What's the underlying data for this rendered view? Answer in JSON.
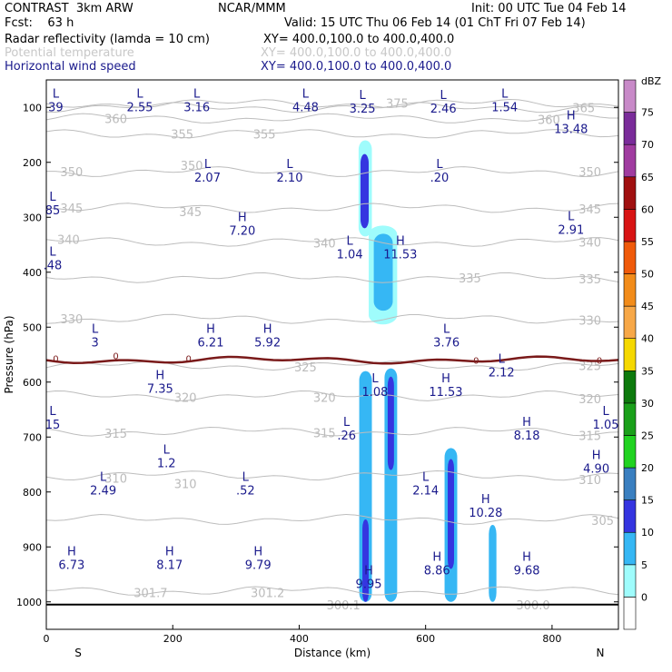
{
  "header": {
    "line1_left": "CONTRAST  3km ARW",
    "line1_center": "NCAR/MMM",
    "line1_right": "Init: 00 UTC Tue 04 Feb 14",
    "line2_left": "Fcst:    63 h",
    "line2_right": "Valid: 15 UTC Thu 06 Feb 14 (01 ChT Fri 07 Feb 14)",
    "fields": [
      {
        "name": "Radar reflectivity (lamda = 10 cm)",
        "xy": "XY= 400.0,100.0 to 400.0,400.0",
        "color": "#000000"
      },
      {
        "name": "Potential temperature",
        "xy": "XY= 400.0,100.0 to 400.0,400.0",
        "color": "#c8c8c8"
      },
      {
        "name": "Horizontal wind speed",
        "xy": "XY= 400.0,100.0 to 400.0,400.0",
        "color": "#1a1a8c"
      }
    ]
  },
  "chart_data": {
    "type": "heatmap",
    "xlabel": "Distance (km)",
    "ylabel": "Pressure (hPa)",
    "x_ticks": [
      "0",
      "200",
      "400",
      "600",
      "800"
    ],
    "y_ticks": [
      "100",
      "200",
      "300",
      "400",
      "500",
      "600",
      "700",
      "800",
      "900",
      "1000"
    ],
    "xlim": [
      0,
      905
    ],
    "ylim": [
      1050,
      50
    ],
    "left_end_label": "S",
    "right_end_label": "N",
    "colorbar": {
      "unit": "dBZ",
      "levels": [
        "0",
        "5",
        "10",
        "15",
        "20",
        "25",
        "30",
        "35",
        "40",
        "45",
        "50",
        "55",
        "60",
        "65",
        "70",
        "75"
      ],
      "colors": [
        "#ffffff",
        "#9ffcfc",
        "#36b7f4",
        "#3535e0",
        "#3a7fc0",
        "#21d321",
        "#1aa01a",
        "#0d7a0d",
        "#f5d800",
        "#f7a848",
        "#f28c1a",
        "#f05a0a",
        "#d81414",
        "#a01010",
        "#a03ca0",
        "#7a2c9a",
        "#c88ac8"
      ]
    },
    "theta_contours": [
      {
        "label": "375",
        "p": 93
      },
      {
        "label": "365",
        "p": 100
      },
      {
        "label": "360",
        "p": 120
      },
      {
        "label": "355",
        "p": 148
      },
      {
        "label": "350",
        "p": 217
      },
      {
        "label": "345",
        "p": 283
      },
      {
        "label": "340",
        "p": 345
      },
      {
        "label": "335",
        "p": 410
      },
      {
        "label": "330",
        "p": 485
      },
      {
        "label": "325",
        "p": 570
      },
      {
        "label": "320",
        "p": 625
      },
      {
        "label": "315",
        "p": 690
      },
      {
        "label": "310",
        "p": 770
      },
      {
        "label": "305",
        "p": 850
      },
      {
        "label": "301.7",
        "p": 980
      }
    ],
    "isolines_labels": [
      {
        "text": "360",
        "x": 110,
        "p": 120
      },
      {
        "text": "355",
        "x": 215,
        "p": 148
      },
      {
        "text": "355",
        "x": 345,
        "p": 148
      },
      {
        "text": "350",
        "x": 40,
        "p": 217
      },
      {
        "text": "350",
        "x": 230,
        "p": 205
      },
      {
        "text": "345",
        "x": 40,
        "p": 283
      },
      {
        "text": "345",
        "x": 228,
        "p": 290
      },
      {
        "text": "340",
        "x": 35,
        "p": 340
      },
      {
        "text": "340",
        "x": 440,
        "p": 347
      },
      {
        "text": "335",
        "x": 670,
        "p": 410
      },
      {
        "text": "330",
        "x": 40,
        "p": 485
      },
      {
        "text": "325",
        "x": 410,
        "p": 572
      },
      {
        "text": "320",
        "x": 220,
        "p": 628
      },
      {
        "text": "320",
        "x": 440,
        "p": 628
      },
      {
        "text": "315",
        "x": 110,
        "p": 693
      },
      {
        "text": "315",
        "x": 440,
        "p": 692
      },
      {
        "text": "310",
        "x": 110,
        "p": 775
      },
      {
        "text": "310",
        "x": 220,
        "p": 785
      },
      {
        "text": "305",
        "x": 880,
        "p": 852
      },
      {
        "text": "301.7",
        "x": 165,
        "p": 983
      },
      {
        "text": "301.2",
        "x": 350,
        "p": 983
      },
      {
        "text": "300.1",
        "x": 470,
        "p": 1005
      },
      {
        "text": "300.0",
        "x": 770,
        "p": 1005
      },
      {
        "text": "365",
        "x": 850,
        "p": 100
      },
      {
        "text": "360",
        "x": 795,
        "p": 122
      },
      {
        "text": "350",
        "x": 860,
        "p": 217
      },
      {
        "text": "345",
        "x": 860,
        "p": 285
      },
      {
        "text": "340",
        "x": 860,
        "p": 345
      },
      {
        "text": "335",
        "x": 860,
        "p": 412
      },
      {
        "text": "330",
        "x": 860,
        "p": 487
      },
      {
        "text": "325",
        "x": 860,
        "p": 570
      },
      {
        "text": "320",
        "x": 860,
        "p": 630
      },
      {
        "text": "315",
        "x": 860,
        "p": 697
      },
      {
        "text": "310",
        "x": 860,
        "p": 777
      },
      {
        "text": "375",
        "x": 555,
        "p": 92
      }
    ],
    "freezing_level_p": 560,
    "zero_labels": [
      {
        "text": "0",
        "x": 15,
        "p": 557
      },
      {
        "text": "0",
        "x": 110,
        "p": 552
      },
      {
        "text": "0",
        "x": 225,
        "p": 557
      },
      {
        "text": "0",
        "x": 680,
        "p": 560
      },
      {
        "text": "0",
        "x": 875,
        "p": 560
      }
    ],
    "wind_highs_lows": [
      {
        "type": "L",
        "value": "39",
        "x": 15,
        "p": 82
      },
      {
        "type": "L",
        "value": "2.55",
        "x": 148,
        "p": 82
      },
      {
        "type": "L",
        "value": "3.16",
        "x": 238,
        "p": 82
      },
      {
        "type": "L",
        "value": "4.48",
        "x": 410,
        "p": 82
      },
      {
        "type": "L",
        "value": "3.25",
        "x": 500,
        "p": 85
      },
      {
        "type": "L",
        "value": "2.46",
        "x": 628,
        "p": 85
      },
      {
        "type": "L",
        "value": "1.54",
        "x": 725,
        "p": 82
      },
      {
        "type": "H",
        "value": "13.48",
        "x": 830,
        "p": 122
      },
      {
        "type": "L",
        "value": "2.07",
        "x": 255,
        "p": 210
      },
      {
        "type": "L",
        "value": "2.10",
        "x": 385,
        "p": 210
      },
      {
        "type": "L",
        "value": ".20",
        "x": 622,
        "p": 210
      },
      {
        "type": "L",
        "value": "85",
        "x": 10,
        "p": 270
      },
      {
        "type": "H",
        "value": "7.20",
        "x": 310,
        "p": 307
      },
      {
        "type": "L",
        "value": "1.04",
        "x": 480,
        "p": 350
      },
      {
        "type": "H",
        "value": "11.53",
        "x": 560,
        "p": 350
      },
      {
        "type": "L",
        "value": "2.91",
        "x": 830,
        "p": 305
      },
      {
        "type": "L",
        "value": ".48",
        "x": 10,
        "p": 370
      },
      {
        "type": "L",
        "value": "3",
        "x": 77,
        "p": 510
      },
      {
        "type": "H",
        "value": "6.21",
        "x": 260,
        "p": 510
      },
      {
        "type": "H",
        "value": "5.92",
        "x": 350,
        "p": 510
      },
      {
        "type": "L",
        "value": "3.76",
        "x": 633,
        "p": 510
      },
      {
        "type": "L",
        "value": "2.12",
        "x": 720,
        "p": 565
      },
      {
        "type": "H",
        "value": "7.35",
        "x": 180,
        "p": 595
      },
      {
        "type": "L",
        "value": "1.08",
        "x": 520,
        "p": 600
      },
      {
        "type": "H",
        "value": "11.53",
        "x": 632,
        "p": 600
      },
      {
        "type": "L",
        "value": "15",
        "x": 10,
        "p": 660
      },
      {
        "type": "L",
        "value": "1.05",
        "x": 885,
        "p": 660
      },
      {
        "type": "L",
        "value": ".26",
        "x": 475,
        "p": 680
      },
      {
        "type": "H",
        "value": "8.18",
        "x": 760,
        "p": 680
      },
      {
        "type": "L",
        "value": "1.2",
        "x": 190,
        "p": 730
      },
      {
        "type": "H",
        "value": "4.90",
        "x": 870,
        "p": 740
      },
      {
        "type": "L",
        "value": "2.49",
        "x": 90,
        "p": 780
      },
      {
        "type": "L",
        "value": ".52",
        "x": 315,
        "p": 780
      },
      {
        "type": "L",
        "value": "2.14",
        "x": 600,
        "p": 780
      },
      {
        "type": "H",
        "value": "10.28",
        "x": 695,
        "p": 820
      },
      {
        "type": "H",
        "value": "6.73",
        "x": 40,
        "p": 915
      },
      {
        "type": "H",
        "value": "8.17",
        "x": 195,
        "p": 915
      },
      {
        "type": "H",
        "value": "9.79",
        "x": 335,
        "p": 915
      },
      {
        "type": "H",
        "value": "9.95",
        "x": 510,
        "p": 950
      },
      {
        "type": "H",
        "value": "8.86",
        "x": 618,
        "p": 925
      },
      {
        "type": "H",
        "value": "9.68",
        "x": 760,
        "p": 925
      }
    ],
    "reflectivity_cells": [
      {
        "x0": 494,
        "x1": 515,
        "p0": 160,
        "p1": 335,
        "dbz": 5
      },
      {
        "x0": 497,
        "x1": 510,
        "p0": 185,
        "p1": 320,
        "dbz": 15
      },
      {
        "x0": 510,
        "x1": 555,
        "p0": 315,
        "p1": 495,
        "dbz": 5
      },
      {
        "x0": 518,
        "x1": 548,
        "p0": 330,
        "p1": 470,
        "dbz": 10
      },
      {
        "x0": 495,
        "x1": 515,
        "p0": 580,
        "p1": 1000,
        "dbz": 10
      },
      {
        "x0": 535,
        "x1": 555,
        "p0": 575,
        "p1": 1000,
        "dbz": 10
      },
      {
        "x0": 540,
        "x1": 550,
        "p0": 590,
        "p1": 760,
        "dbz": 15
      },
      {
        "x0": 630,
        "x1": 650,
        "p0": 720,
        "p1": 1000,
        "dbz": 10
      },
      {
        "x0": 635,
        "x1": 645,
        "p0": 740,
        "p1": 940,
        "dbz": 15
      },
      {
        "x0": 700,
        "x1": 712,
        "p0": 860,
        "p1": 1000,
        "dbz": 10
      },
      {
        "x0": 500,
        "x1": 510,
        "p0": 850,
        "p1": 1000,
        "dbz": 15
      }
    ]
  }
}
